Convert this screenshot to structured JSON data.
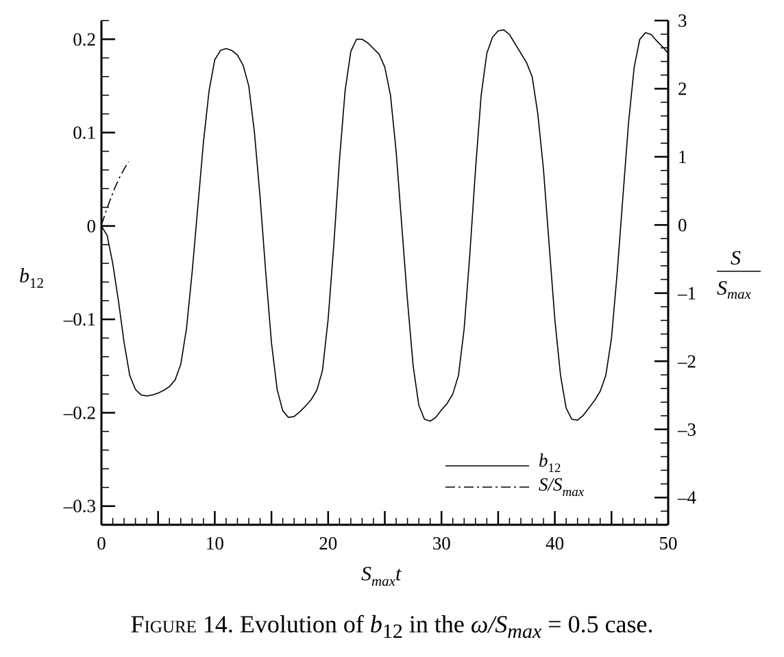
{
  "chart_data": {
    "type": "line",
    "title": "",
    "xlabel": "S_max t",
    "ylabel": "b_12",
    "y2label": "S / S_max",
    "xlim": [
      0,
      50
    ],
    "ylim": [
      -0.32,
      0.22
    ],
    "y2lim": [
      -4.4,
      3
    ],
    "x_ticks": [
      "0",
      "10",
      "20",
      "30",
      "40",
      "50"
    ],
    "y_ticks": [
      "0.2",
      "0.1",
      "0",
      "–0.1",
      "–0.2",
      "–0.3"
    ],
    "y2_ticks": [
      "3",
      "2",
      "1",
      "0",
      "–1",
      "–2",
      "–3",
      "–4"
    ],
    "grid": false,
    "legend_position": "bottom-right",
    "legend": [
      "b12",
      "S/Smax"
    ],
    "series": [
      {
        "name": "b12",
        "axis": "left",
        "style": "solid",
        "x": [
          0,
          0.5,
          1,
          1.5,
          2,
          2.5,
          3,
          3.5,
          4,
          4.5,
          5,
          5.5,
          6,
          6.5,
          7,
          7.5,
          8,
          8.5,
          9,
          9.5,
          10,
          10.5,
          11,
          11.5,
          12,
          12.5,
          13,
          13.5,
          14,
          14.5,
          15,
          15.5,
          16,
          16.5,
          17,
          17.5,
          18,
          18.5,
          19,
          19.5,
          20,
          20.5,
          21,
          21.5,
          22,
          22.5,
          23,
          23.5,
          24,
          24.5,
          25,
          25.5,
          26,
          26.5,
          27,
          27.5,
          28,
          28.5,
          29,
          29.5,
          30,
          30.5,
          31,
          31.5,
          32,
          32.5,
          33,
          33.5,
          34,
          34.5,
          35,
          35.5,
          36,
          36.5,
          37,
          37.5,
          38,
          38.5,
          39,
          39.5,
          40,
          40.5,
          41,
          41.5,
          42,
          42.5,
          43,
          43.5,
          44,
          44.5,
          45,
          45.5,
          46,
          46.5,
          47,
          47.5,
          48,
          48.5,
          49,
          49.5,
          50
        ],
        "values": [
          0.0,
          -0.01,
          -0.04,
          -0.08,
          -0.125,
          -0.16,
          -0.175,
          -0.181,
          -0.182,
          -0.181,
          -0.179,
          -0.176,
          -0.172,
          -0.165,
          -0.148,
          -0.11,
          -0.05,
          0.02,
          0.09,
          0.145,
          0.178,
          0.188,
          0.19,
          0.188,
          0.183,
          0.172,
          0.15,
          0.1,
          0.03,
          -0.05,
          -0.125,
          -0.175,
          -0.198,
          -0.205,
          -0.204,
          -0.199,
          -0.193,
          -0.186,
          -0.176,
          -0.155,
          -0.1,
          -0.02,
          0.07,
          0.145,
          0.187,
          0.2,
          0.2,
          0.196,
          0.19,
          0.184,
          0.17,
          0.14,
          0.08,
          0.0,
          -0.08,
          -0.15,
          -0.192,
          -0.207,
          -0.209,
          -0.205,
          -0.197,
          -0.19,
          -0.18,
          -0.16,
          -0.11,
          -0.03,
          0.06,
          0.14,
          0.185,
          0.202,
          0.209,
          0.21,
          0.205,
          0.195,
          0.185,
          0.175,
          0.16,
          0.12,
          0.06,
          -0.02,
          -0.1,
          -0.16,
          -0.195,
          -0.207,
          -0.208,
          -0.203,
          -0.195,
          -0.187,
          -0.177,
          -0.16,
          -0.12,
          -0.05,
          0.03,
          0.11,
          0.17,
          0.2,
          0.207,
          0.205,
          0.198,
          0.192,
          0.185
        ]
      },
      {
        "name": "S/Smax",
        "axis": "right",
        "style": "dash-dot",
        "x": [
          0,
          0.4,
          0.8,
          1.2,
          1.6,
          2.0,
          2.4
        ],
        "values": [
          0.0,
          0.2,
          0.38,
          0.55,
          0.7,
          0.82,
          0.93
        ]
      }
    ]
  },
  "labels": {
    "y_axis_left": "b",
    "y_axis_left_sub": "12",
    "x_axis_main": "S",
    "x_axis_sub": "max",
    "x_axis_tail": "t",
    "y_axis_right_num": "S",
    "y_axis_right_den": "S",
    "y_axis_right_den_sub": "max",
    "legend_1_main": "b",
    "legend_1_sub": "12",
    "legend_2_main": "S/S",
    "legend_2_sub": "max"
  },
  "caption": {
    "prefix": "Figure",
    "number": " 14. Evolution of ",
    "b": "b",
    "b_sub": "12",
    "mid": " in the ",
    "omega": "ω/S",
    "omega_sub": "max",
    "tail": " = 0.5 case."
  }
}
